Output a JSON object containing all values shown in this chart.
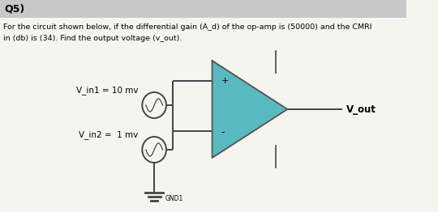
{
  "title_label": "Q5)",
  "desc_line1": "For the circuit shown below, if the differential gain (A_d) of the op-amp is (50000) and the CMRI",
  "desc_line2": "in (db) is (34). Find the output voltage (v_out).",
  "header_bg": "#c8c8c8",
  "body_bg": "#f5f5f0",
  "opamp_fill": "#5ab8c0",
  "opamp_edge": "#555555",
  "wire_color": "#444444",
  "label_vin1": "V_in1 = 10 mv",
  "label_vin2": "V_in2 =  1 mv",
  "label_vout": "V_out",
  "label_gnd": "GND1",
  "plus_label": "+",
  "minus_label": "-"
}
